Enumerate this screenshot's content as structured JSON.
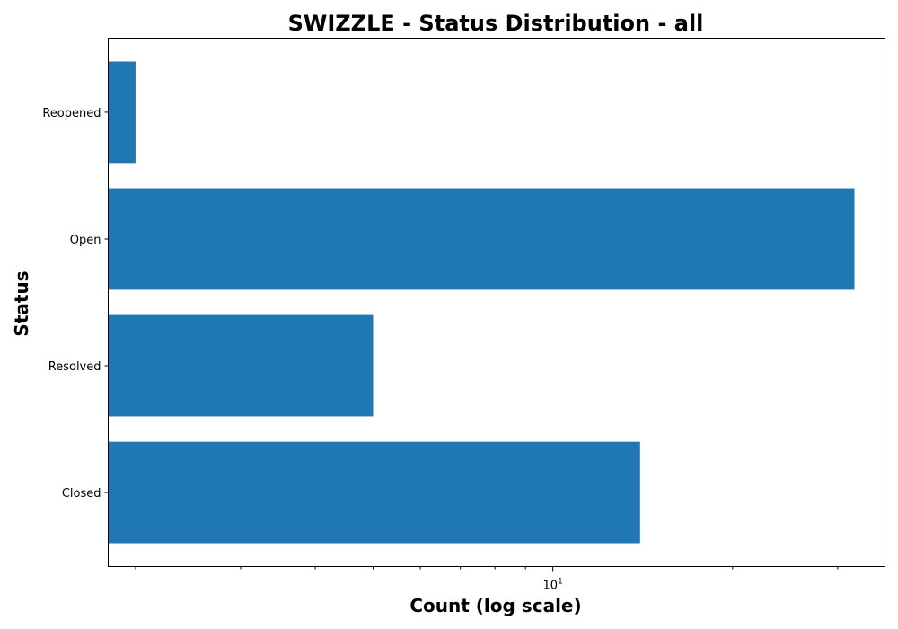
{
  "chart_data": {
    "type": "bar",
    "orientation": "horizontal",
    "title": "SWIZZLE - Status Distribution - all",
    "xlabel": "Count (log scale)",
    "ylabel": "Status",
    "x_scale": "log",
    "xlim": [
      1.8,
      36
    ],
    "categories": [
      "Reopened",
      "Open",
      "Resolved",
      "Closed"
    ],
    "values": [
      2,
      32,
      5,
      14
    ],
    "x_major_ticks": [
      {
        "value": 10,
        "label": "10",
        "exponent": "1"
      }
    ],
    "x_minor_ticks": [
      2,
      3,
      4,
      5,
      6,
      7,
      8,
      9,
      20,
      30
    ],
    "colors": {
      "bar": "#1f77b4"
    },
    "grid": false,
    "legend": null
  }
}
